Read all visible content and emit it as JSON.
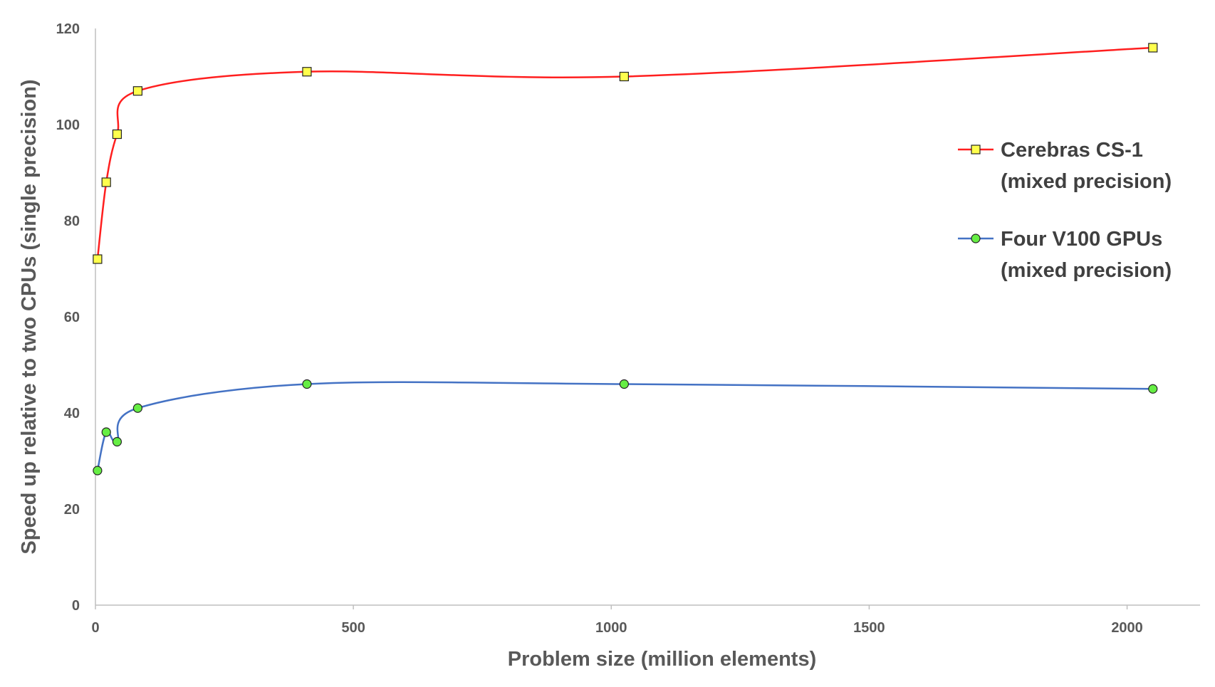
{
  "chart_data": {
    "type": "line",
    "title": "",
    "xlabel": "Problem size (million elements)",
    "ylabel": "Speed up relative to two CPUs (single precision)",
    "xlim": [
      0,
      2100
    ],
    "ylim": [
      0,
      120
    ],
    "x_ticks": [
      0,
      500,
      1000,
      1500,
      2000
    ],
    "y_ticks": [
      0,
      20,
      40,
      60,
      80,
      100,
      120
    ],
    "grid": false,
    "smooth": true,
    "legend_position": "right",
    "series": [
      {
        "name_lines": [
          "Cerebras CS-1",
          "(mixed precision)"
        ],
        "color": "#ff1f1f",
        "marker": "square",
        "marker_fill": "#ffff4d",
        "x": [
          4,
          21,
          42,
          82,
          410,
          1025,
          2050
        ],
        "y": [
          72,
          88,
          98,
          107,
          111,
          110,
          116
        ]
      },
      {
        "name_lines": [
          "Four V100 GPUs",
          "(mixed precision)"
        ],
        "color": "#4472c4",
        "marker": "circle",
        "marker_fill": "#66ee44",
        "x": [
          4,
          21,
          42,
          82,
          410,
          1025,
          2050
        ],
        "y": [
          28,
          36,
          34,
          41,
          46,
          46,
          45
        ]
      }
    ]
  }
}
